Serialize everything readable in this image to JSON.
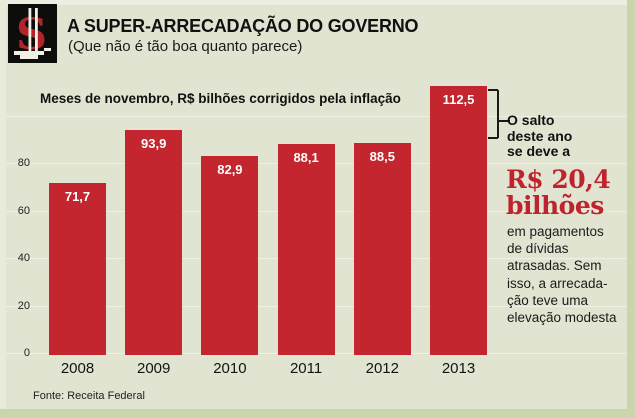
{
  "header": {
    "icon": "dollar-sign-sculpture",
    "title": "A SUPER-ARRECADAÇÃO DO GOVERNO",
    "subtitle": "(Que não é tão boa quanto parece)"
  },
  "chart_data": {
    "type": "bar",
    "title": "Meses de novembro, R$ bilhões corrigidos pela inflação",
    "categories": [
      "2008",
      "2009",
      "2010",
      "2011",
      "2012",
      "2013"
    ],
    "values": [
      71.7,
      93.9,
      82.9,
      88.1,
      88.5,
      112.5
    ],
    "value_labels": [
      "71,7",
      "93,9",
      "82,9",
      "88,1",
      "88,5",
      "112,5"
    ],
    "xlabel": "",
    "ylabel": "",
    "ylim": [
      0,
      120
    ],
    "y_ticks_labeled": [
      0,
      20,
      40,
      60,
      80
    ],
    "y_gridlines": [
      0,
      20,
      40,
      60,
      80,
      100
    ],
    "grid": true,
    "legend": "none",
    "bar_color": "#c3262e",
    "value_label_color": "#ffffff",
    "background_color": "#e0e4d0"
  },
  "annotation": {
    "intro_lines": [
      "O salto",
      "deste ano",
      "se deve a"
    ],
    "highlight_lines": [
      "R$ 20,4",
      "bilhões"
    ],
    "highlight_text": "R$ 20,4 bilhões",
    "highlight_color": "#bf232d",
    "body_lines": [
      "em pagamentos",
      "de dívidas",
      "atrasadas. Sem",
      "isso, a arrecada-",
      "ção teve uma",
      "elevação modesta"
    ]
  },
  "footer": {
    "source": "Fonte: Receita Federal"
  }
}
